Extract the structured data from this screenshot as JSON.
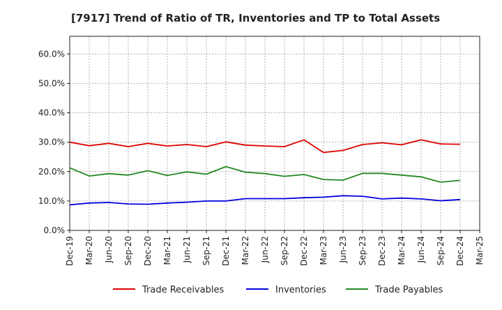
{
  "chart_data": {
    "type": "line",
    "title": "[7917]  Trend of Ratio of TR, Inventories and TP to Total Assets",
    "xlabel": "",
    "ylabel": "",
    "x": [
      "Dec-19",
      "Mar-20",
      "Jun-20",
      "Sep-20",
      "Dec-20",
      "Mar-21",
      "Jun-21",
      "Sep-21",
      "Dec-21",
      "Mar-22",
      "Jun-22",
      "Sep-22",
      "Dec-22",
      "Mar-23",
      "Jun-23",
      "Sep-23",
      "Dec-23",
      "Mar-24",
      "Jun-24",
      "Sep-24",
      "Dec-24",
      "Mar-25"
    ],
    "yticks": [
      "0.0%",
      "10.0%",
      "20.0%",
      "30.0%",
      "40.0%",
      "50.0%",
      "60.0%"
    ],
    "ylim": [
      0,
      66
    ],
    "grid": true,
    "legend_position": "bottom",
    "series": [
      {
        "name": "Trade Receivables",
        "color": "#dd0000",
        "values": [
          30.0,
          28.8,
          29.6,
          28.5,
          29.6,
          28.7,
          29.2,
          28.5,
          30.1,
          29.0,
          28.7,
          28.5,
          30.8,
          26.5,
          27.2,
          29.2,
          29.8,
          29.1,
          30.8,
          29.4,
          29.3,
          null
        ]
      },
      {
        "name": "Inventories",
        "color": "#0000dd",
        "values": [
          8.7,
          9.3,
          9.5,
          9.0,
          8.9,
          9.3,
          9.6,
          10.0,
          10.0,
          10.8,
          10.8,
          10.8,
          11.1,
          11.3,
          11.8,
          11.6,
          10.7,
          11.0,
          10.7,
          10.1,
          10.5,
          null
        ]
      },
      {
        "name": "Trade Payables",
        "color": "#228822",
        "values": [
          21.3,
          18.5,
          19.3,
          18.8,
          20.3,
          18.7,
          19.9,
          19.1,
          21.7,
          19.8,
          19.3,
          18.4,
          19.0,
          17.3,
          17.1,
          19.4,
          19.4,
          18.8,
          18.2,
          16.4,
          17.0,
          null
        ]
      }
    ]
  }
}
